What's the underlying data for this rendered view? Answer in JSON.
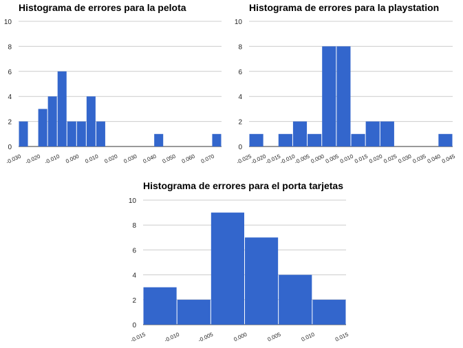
{
  "chart_data": [
    {
      "type": "bar",
      "title": "Histograma de errores para la pelota",
      "x_tick_labels": [
        "-0.030",
        "-0.020",
        "-0.010",
        "0.000",
        "0.010",
        "0.020",
        "0.030",
        "0.040",
        "0.050",
        "0.060",
        "0.070"
      ],
      "y_tick_labels": [
        "0",
        "2",
        "4",
        "6",
        "8",
        "10"
      ],
      "xlim": [
        -0.03,
        0.075
      ],
      "ylim": [
        0,
        10
      ],
      "bin_width": 0.005,
      "bins_start": [
        -0.03,
        -0.025,
        -0.02,
        -0.015,
        -0.01,
        -0.005,
        0.0,
        0.005,
        0.01,
        0.015,
        0.02,
        0.025,
        0.03,
        0.035,
        0.04,
        0.045,
        0.05,
        0.055,
        0.06,
        0.065,
        0.07
      ],
      "values": [
        2,
        0,
        3,
        4,
        6,
        2,
        2,
        4,
        2,
        0,
        0,
        0,
        0,
        0,
        1,
        0,
        0,
        0,
        0,
        0,
        1
      ],
      "grid": true,
      "color": "#3366cc"
    },
    {
      "type": "bar",
      "title": "Histograma de errores para la playstation",
      "x_tick_labels": [
        "-0.025",
        "-0.020",
        "-0.015",
        "-0.010",
        "-0.005",
        "0.000",
        "0.005",
        "0.010",
        "0.015",
        "0.020",
        "0.025",
        "0.030",
        "0.035",
        "0.040",
        "0.045"
      ],
      "y_tick_labels": [
        "0",
        "2",
        "4",
        "6",
        "8",
        "10"
      ],
      "xlim": [
        -0.025,
        0.045
      ],
      "ylim": [
        0,
        10
      ],
      "bin_width": 0.005,
      "bins_start": [
        -0.025,
        -0.02,
        -0.015,
        -0.01,
        -0.005,
        0.0,
        0.005,
        0.01,
        0.015,
        0.02,
        0.025,
        0.03,
        0.035,
        0.04
      ],
      "values": [
        1,
        0,
        1,
        2,
        1,
        8,
        8,
        1,
        2,
        2,
        0,
        0,
        0,
        1
      ],
      "grid": true,
      "color": "#3366cc"
    },
    {
      "type": "bar",
      "title": "Histograma de errores para el porta tarjetas",
      "x_tick_labels": [
        "-0.015",
        "-0.010",
        "-0.005",
        "0.000",
        "0.005",
        "0.010",
        "0.015"
      ],
      "y_tick_labels": [
        "0",
        "2",
        "4",
        "6",
        "8",
        "10"
      ],
      "xlim": [
        -0.015,
        0.015
      ],
      "ylim": [
        0,
        10
      ],
      "bin_width": 0.005,
      "bins_start": [
        -0.015,
        -0.01,
        -0.005,
        0.0,
        0.005,
        0.01
      ],
      "values": [
        3,
        2,
        9,
        7,
        4,
        2
      ],
      "grid": true,
      "color": "#3366cc"
    }
  ]
}
